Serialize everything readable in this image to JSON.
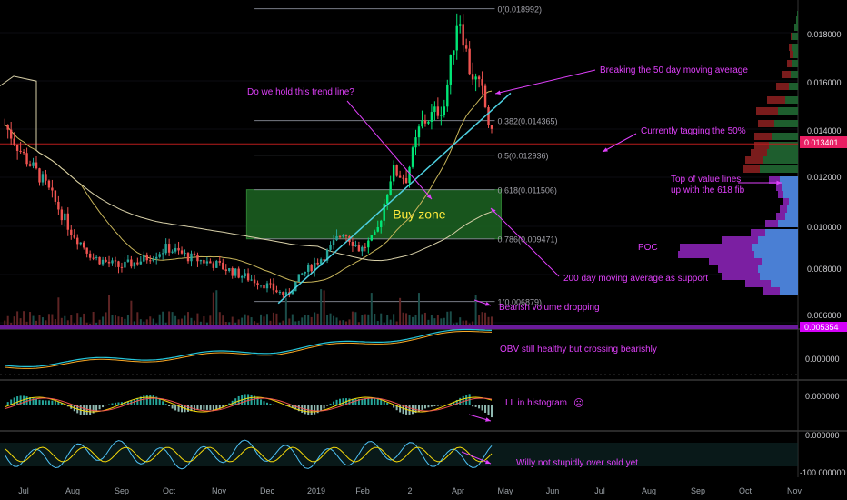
{
  "chart_data": {
    "type": "candlestick",
    "instrument": "",
    "x_ticks": [
      "Jul",
      "Aug",
      "Sep",
      "Oct",
      "Nov",
      "Dec",
      "2019",
      "Feb",
      "2",
      "Apr",
      "May",
      "Jun",
      "Jul",
      "Aug",
      "Sep",
      "Oct",
      "Nov"
    ],
    "y_ticks": [
      "0.018000",
      "0.016000",
      "0.014000",
      "0.012000",
      "0.010000",
      "0.008000",
      "0.006000"
    ],
    "last_price": "0.013401",
    "low_label": "0.005354",
    "price_series_approx": [
      {
        "date": "2018-06-20",
        "close": 0.0142
      },
      {
        "date": "2018-07-01",
        "close": 0.013
      },
      {
        "date": "2018-07-15",
        "close": 0.0118
      },
      {
        "date": "2018-08-01",
        "close": 0.0098
      },
      {
        "date": "2018-08-15",
        "close": 0.0087
      },
      {
        "date": "2018-09-01",
        "close": 0.0083
      },
      {
        "date": "2018-09-15",
        "close": 0.0086
      },
      {
        "date": "2018-10-01",
        "close": 0.0091
      },
      {
        "date": "2018-10-15",
        "close": 0.0087
      },
      {
        "date": "2018-11-01",
        "close": 0.0084
      },
      {
        "date": "2018-11-15",
        "close": 0.008
      },
      {
        "date": "2018-12-01",
        "close": 0.0076
      },
      {
        "date": "2018-12-15",
        "close": 0.0071
      },
      {
        "date": "2018-12-25",
        "close": 0.008
      },
      {
        "date": "2019-01-10",
        "close": 0.0089
      },
      {
        "date": "2019-01-20",
        "close": 0.0098
      },
      {
        "date": "2019-01-31",
        "close": 0.009
      },
      {
        "date": "2019-02-10",
        "close": 0.0096
      },
      {
        "date": "2019-02-20",
        "close": 0.0123
      },
      {
        "date": "2019-03-01",
        "close": 0.012
      },
      {
        "date": "2019-03-10",
        "close": 0.0142
      },
      {
        "date": "2019-03-25",
        "close": 0.015
      },
      {
        "date": "2019-04-03",
        "close": 0.0189
      },
      {
        "date": "2019-04-10",
        "close": 0.0165
      },
      {
        "date": "2019-04-18",
        "close": 0.0155
      },
      {
        "date": "2019-04-25",
        "close": 0.0134
      }
    ],
    "fib_levels": [
      {
        "label": "0(0.018992)",
        "value": 0.018992
      },
      {
        "label": "0.382(0.014365)",
        "value": 0.014365
      },
      {
        "label": "0.5(0.012936)",
        "value": 0.012936
      },
      {
        "label": "0.618(0.011506)",
        "value": 0.011506
      },
      {
        "label": "0.786(0.009471)",
        "value": 0.009471
      },
      {
        "label": "1(0.006879)",
        "value": 0.006879
      }
    ],
    "buy_zone": {
      "label": "Buy zone",
      "from": 0.009471,
      "to": 0.011506,
      "start": "2018-11-20",
      "end": "2019-04-30"
    },
    "trend_line": {
      "from": {
        "date": "2018-12-10",
        "value": 0.0068
      },
      "to": {
        "date": "2019-05-06",
        "value": 0.0155
      }
    },
    "annotations": [
      {
        "text": "Do we hold this trend line?"
      },
      {
        "text": "Breaking the 50 day moving average"
      },
      {
        "text": "Currently tagging the 50%"
      },
      {
        "text": "Top of value lines"
      },
      {
        "text": "up with the 618 fib"
      },
      {
        "text": "POC"
      },
      {
        "text": "200 day moving average as support"
      },
      {
        "text": "Bearish volume dropping"
      },
      {
        "text": "OBV still healthy but crossing bearishly"
      },
      {
        "text": "LL in histogram"
      },
      {
        "text": "Willy not stupidly over sold yet"
      }
    ],
    "panels": [
      {
        "name": "OBV",
        "tick": "0.000000"
      },
      {
        "name": "MACD histogram",
        "tick": "0.000000"
      },
      {
        "name": "Williams %R",
        "ticks": [
          "0.000000",
          "-100.000000"
        ]
      }
    ],
    "colors": {
      "up": "#26a69a",
      "up_bright": "#00e676",
      "down": "#ef5350",
      "annotation": "#e040fb",
      "fib": "#787b86",
      "ma50": "#c8b55a",
      "ma200": "#d8d0a8",
      "trend": "#4dd0e1",
      "zone": "#1b5e20",
      "buy_text": "#ffeb3b",
      "last_price_bg": "#e91e63",
      "profile_blue": "#4a7fd4",
      "profile_purple": "#7b1fa2",
      "profile_green": "#1e5e2e",
      "profile_red": "#7a1c1c"
    }
  }
}
